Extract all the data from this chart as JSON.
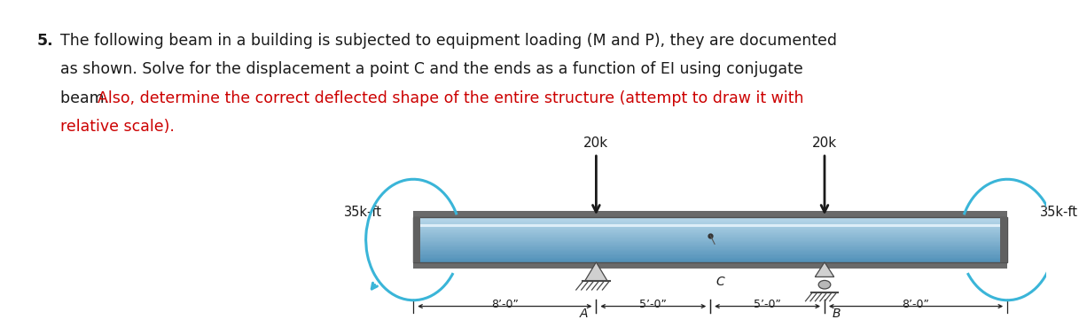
{
  "title_black1": "The following beam in a building is subjected to equipment loading (M and P), they are documented",
  "title_black2": "as shown. Solve for the displacement a point C and the ends as a function of EI using conjugate",
  "title_black3": "beam. ",
  "title_red": "Also, determine the correct deflected shape of the entire structure (attempt to draw it with",
  "title_red2": "relative scale).",
  "item_number": "5.",
  "load_label": "20k",
  "moment_left_label": "35k-ft",
  "moment_right_label": "35k-ft",
  "dim_labels": [
    "8’-0”",
    "5’-0”",
    "5’-0”",
    "8’-0”"
  ],
  "point_A": "A",
  "point_B": "B",
  "point_C": "C",
  "text_color_black": "#1a1a1a",
  "text_color_red": "#cc0000",
  "arrow_color": "#1a1a1a",
  "moment_arc_color": "#3ab5d8",
  "beam_gray_top": "#787878",
  "beam_blue_top": "#b8d8ea",
  "beam_blue_bot": "#5090b8",
  "support_face": "#c8c8c8",
  "support_edge": "#484848",
  "background": "#ffffff"
}
